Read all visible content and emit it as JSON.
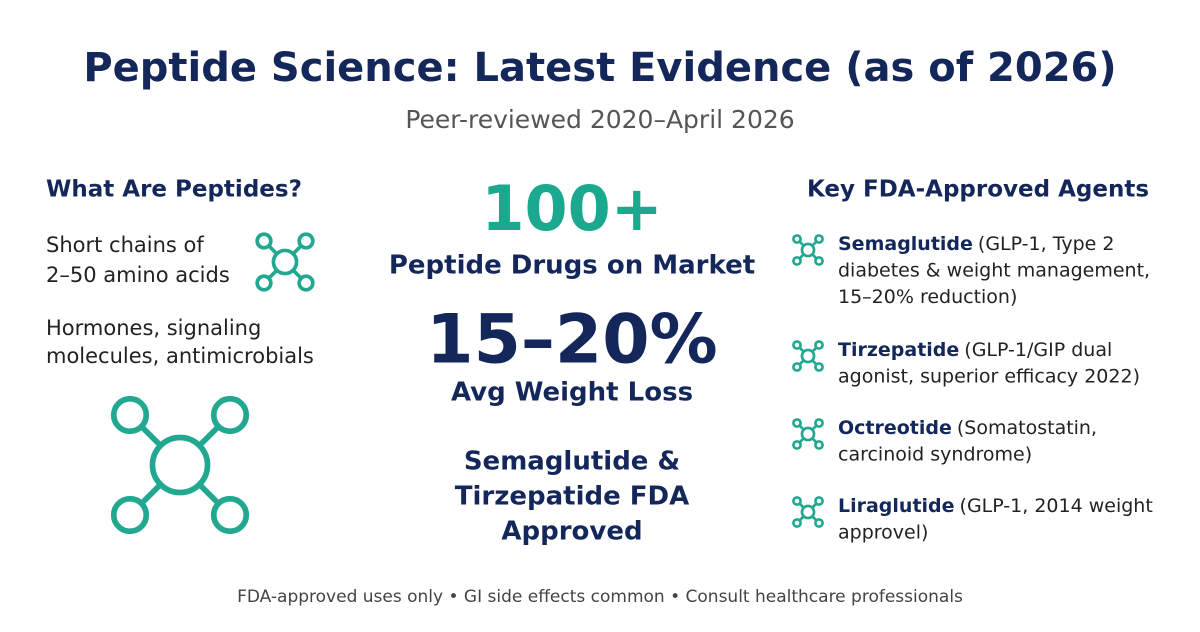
{
  "header": {
    "title": "Peptide Science: Latest Evidence (as of 2026)",
    "subtitle": "Peer-reviewed 2020–April 2026"
  },
  "left": {
    "heading": "What Are Peptides?",
    "definition_lines": [
      "Short chains of",
      "2–50 amino acids"
    ],
    "roles_lines": [
      "Hormones, signaling",
      "molecules, antimicrobials"
    ]
  },
  "center": {
    "stat1": {
      "value": "100+",
      "label": "Peptide Drugs on Market"
    },
    "stat2": {
      "value": "15–20%",
      "label": "Avg Weight Loss"
    },
    "note_lines": [
      "Semaglutide &",
      "Tirzepatide FDA",
      "Approved"
    ]
  },
  "right": {
    "heading": "Key FDA-Approved Agents",
    "agents": [
      {
        "name": "Semaglutide",
        "detail_lines": [
          "(GLP-1, Type 2",
          "diabetes & weight management,",
          "15–20% reduction)"
        ]
      },
      {
        "name": "Tirzepatide",
        "detail_lines": [
          "(GLP-1/GIP dual",
          "agonist, superior efficacy 2022)"
        ]
      },
      {
        "name": "Octreotide",
        "detail_lines": [
          "(Somatostatin,",
          "carcinoid syndrome)"
        ]
      },
      {
        "name": "Liraglutide",
        "detail_lines": [
          "(GLP-1, 2014 weight",
          "approvel)"
        ]
      }
    ]
  },
  "footer": "FDA-approved uses only • GI side effects common • Consult healthcare professionals"
}
